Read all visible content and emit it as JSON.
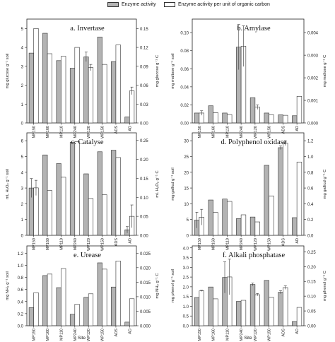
{
  "legend": {
    "enzyme_label": "Enzyme activity",
    "per_oc_label": "Enzyme activity per unit of organic carbon",
    "enzyme_color": "#b3b3b3",
    "per_oc_color": "#ffffff"
  },
  "x_axis_title": "Site",
  "chart_data": [
    {
      "type": "bar",
      "title": "a. Invertase",
      "categories": [
        "MP150",
        "MP160",
        "MP110",
        "MP240",
        "WP120",
        "WP150",
        "ADS",
        "AD"
      ],
      "ylabel": "mg glucose g⁻¹ soil",
      "y2label": "mg glucose g⁻¹ C",
      "ylim": [
        0,
        5.5
      ],
      "yticks": [
        0,
        1,
        2,
        3,
        4,
        5
      ],
      "y2lim": [
        0,
        0.165
      ],
      "y2ticks": [
        "0.00",
        "0.03",
        "0.06",
        "0.09",
        "0.12",
        "0.15"
      ],
      "tick_labels_left": [
        "0",
        "1",
        "2",
        "3",
        "4",
        "5"
      ],
      "tick_labels_right": [
        "0.00",
        "0.03",
        "0.06",
        "0.09",
        "0.12",
        "0.15"
      ],
      "series": [
        {
          "values": [
            3.7,
            4.75,
            3.3,
            2.9,
            3.5,
            4.55,
            3.25,
            0.32
          ],
          "errors": [
            0,
            0,
            0,
            0,
            0.25,
            0,
            0,
            0
          ]
        },
        {
          "values": [
            0.15,
            0.11,
            0.106,
            0.12,
            0.088,
            0.093,
            0.124,
            0.051
          ],
          "errors": [
            0,
            0,
            0,
            0,
            0.005,
            0,
            0,
            0.006
          ]
        }
      ]
    },
    {
      "type": "bar",
      "title": "b. Amylase",
      "categories": [
        "MP150",
        "MP160",
        "MP110",
        "MP240",
        "WP120",
        "WP150",
        "ADS",
        "AD"
      ],
      "ylabel": "mg maltose g⁻¹ soil",
      "y2label": "mg maltose g⁻¹ C",
      "ylim": [
        0,
        0.115
      ],
      "yticks": [
        0,
        0.02,
        0.04,
        0.06,
        0.08,
        0.1
      ],
      "y2lim": [
        0,
        0.0046
      ],
      "y2ticks": [
        0,
        0.001,
        0.002,
        0.003,
        0.004
      ],
      "tick_labels_left": [
        "0.00",
        "0.02",
        "0.04",
        "0.06",
        "0.08",
        "0.10"
      ],
      "tick_labels_right": [
        "0.000",
        "0.001",
        "0.002",
        "0.003",
        "0.004"
      ],
      "series": [
        {
          "values": [
            0.011,
            0.019,
            0.011,
            0.084,
            0.028,
            0.011,
            0.009,
            0.008
          ],
          "errors": [
            0,
            0,
            0,
            0.025,
            0,
            0,
            0,
            0
          ]
        },
        {
          "values": [
            0.00044,
            0.00046,
            0.00037,
            0.0034,
            0.0007,
            0.00036,
            0.00034,
            0.00118
          ],
          "errors": [
            0.0001,
            0,
            0,
            0.0009,
            0.0001,
            0,
            0,
            0
          ]
        }
      ]
    },
    {
      "type": "bar",
      "title": "c. Catalyse",
      "categories": [
        "MP150",
        "MP160",
        "MP110",
        "MP240",
        "WP120",
        "WP150",
        "ADS",
        "AD"
      ],
      "ylabel": "mL H₂O₂ g⁻¹ soil",
      "y2label": "mL H₂O₂ g⁻¹ C",
      "ylim": [
        0,
        6.5
      ],
      "yticks": [
        0,
        1,
        2,
        3,
        4,
        5,
        6
      ],
      "y2lim": [
        0,
        0.27
      ],
      "y2ticks": [
        0,
        0.05,
        0.1,
        0.15,
        0.2,
        0.25
      ],
      "tick_labels_left": [
        "0",
        "1",
        "2",
        "3",
        "4",
        "5",
        "6"
      ],
      "tick_labels_right": [
        "0.00",
        "0.05",
        "0.10",
        "0.15",
        "0.20",
        "0.25"
      ],
      "series": [
        {
          "values": [
            3.0,
            5.1,
            4.55,
            5.9,
            3.9,
            5.3,
            5.4,
            0.35
          ],
          "errors": [
            0.6,
            0,
            0,
            0,
            0,
            0,
            0,
            0.2
          ]
        },
        {
          "values": [
            0.125,
            0.118,
            0.153,
            0.247,
            0.097,
            0.107,
            0.205,
            0.05
          ],
          "errors": [
            0.02,
            0,
            0,
            0,
            0,
            0,
            0,
            0.03
          ]
        }
      ]
    },
    {
      "type": "bar",
      "title": "d. Polyphenol oxidase",
      "categories": [
        "MP150",
        "MP160",
        "MP110",
        "MP240",
        "WP120",
        "WP150",
        "ADS",
        "AD"
      ],
      "ylabel": "mg gallicd g⁻¹ soil",
      "y2label": "mg gallicd g⁻¹ C",
      "ylim": [
        0,
        32.5
      ],
      "yticks": [
        0,
        5,
        10,
        15,
        20,
        25,
        30
      ],
      "y2lim": [
        0,
        1.3
      ],
      "y2ticks": [
        0,
        0.2,
        0.4,
        0.6,
        0.8,
        1.0,
        1.2
      ],
      "tick_labels_left": [
        "0",
        "5",
        "10",
        "15",
        "20",
        "25",
        "30"
      ],
      "tick_labels_right": [
        "0.0",
        "0.2",
        "0.4",
        "0.6",
        "0.8",
        "1.0",
        "1.2"
      ],
      "series": [
        {
          "values": [
            4.8,
            11.2,
            11.5,
            5.3,
            5.8,
            22.2,
            27.8,
            5.6
          ],
          "errors": [
            2.5,
            0,
            0,
            0,
            0,
            0,
            0.6,
            0
          ]
        },
        {
          "values": [
            0.23,
            0.29,
            0.43,
            0.26,
            0.17,
            0.5,
            1.17,
            0.93
          ],
          "errors": [
            0.1,
            0,
            0,
            0,
            0,
            0,
            0.03,
            0
          ]
        }
      ]
    },
    {
      "type": "bar",
      "title": "e. Urease",
      "categories": [
        "MP150",
        "MP160",
        "MP110",
        "MP240",
        "WP120",
        "WP150",
        "ADS",
        "AD"
      ],
      "ylabel": "mg NH₃ g⁻¹ soil",
      "y2label": "mg NH₃ g⁻¹ C",
      "ylim": [
        0,
        1.32
      ],
      "yticks": [
        0,
        0.2,
        0.4,
        0.6,
        0.8,
        1.0,
        1.2
      ],
      "y2lim": [
        0,
        0.0275
      ],
      "y2ticks": [
        0,
        0.005,
        0.01,
        0.015,
        0.02,
        0.025
      ],
      "tick_labels_left": [
        "0.0",
        "0.2",
        "0.4",
        "0.6",
        "0.8",
        "1.0",
        "1.2"
      ],
      "tick_labels_right": [
        "0.000",
        "0.005",
        "0.010",
        "0.015",
        "0.020",
        "0.025"
      ],
      "series": [
        {
          "values": [
            0.3,
            0.83,
            0.63,
            0.19,
            0.47,
            1.04,
            0.64,
            0.06
          ],
          "errors": [
            0,
            0,
            0,
            0,
            0,
            0,
            0,
            0
          ]
        },
        {
          "values": [
            0.0114,
            0.0178,
            0.0197,
            0.0074,
            0.011,
            0.0195,
            0.0223,
            0.0093
          ],
          "errors": [
            0,
            0,
            0,
            0,
            0,
            0,
            0,
            0
          ]
        }
      ]
    },
    {
      "type": "bar",
      "title": "f. Alkali phosphatase",
      "categories": [
        "MP150",
        "MP160",
        "MP110",
        "MP240",
        "WP120",
        "WP150",
        "ADS",
        "AD"
      ],
      "ylabel": "mg phenol g⁻¹ soil",
      "y2label": "mg phenol g⁻¹ C",
      "ylim": [
        0,
        4.1
      ],
      "yticks": [
        0,
        0.5,
        1,
        1.5,
        2,
        2.5,
        3,
        3.5,
        4
      ],
      "y2lim": [
        0,
        0.27
      ],
      "y2ticks": [
        0,
        0.05,
        0.1,
        0.15,
        0.2,
        0.25
      ],
      "tick_labels_left": [
        "0.0",
        "0.5",
        "1.0",
        "1.5",
        "2.0",
        "2.5",
        "3.0",
        "3.5",
        "4.0"
      ],
      "tick_labels_right": [
        "0.00",
        "0.05",
        "0.10",
        "0.15",
        "0.20",
        "0.25"
      ],
      "series": [
        {
          "values": [
            1.45,
            1.99,
            2.48,
            1.25,
            2.12,
            2.33,
            1.72,
            0.22
          ],
          "errors": [
            0,
            0,
            0.8,
            0,
            0.07,
            0,
            0.08,
            0
          ]
        },
        {
          "values": [
            0.118,
            0.091,
            0.165,
            0.086,
            0.105,
            0.096,
            0.129,
            0.062
          ],
          "errors": [
            0.002,
            0,
            0.06,
            0,
            0.004,
            0,
            0.006,
            0
          ]
        }
      ]
    }
  ]
}
